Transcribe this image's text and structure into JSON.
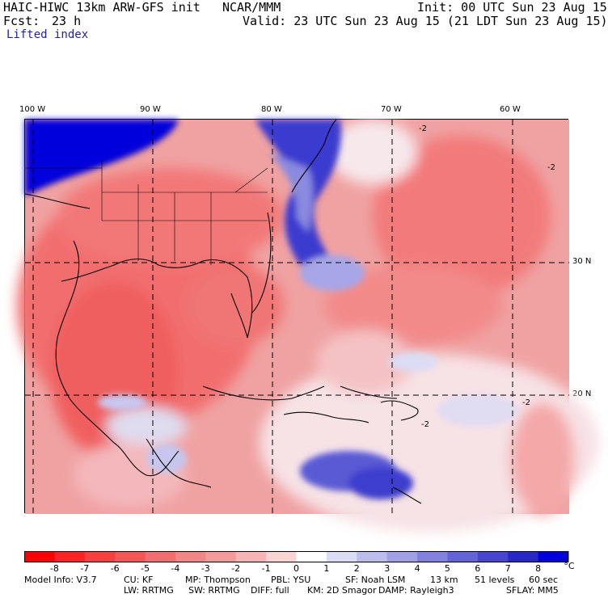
{
  "header": {
    "model": "HAIC-HIWC 13km ARW-GFS init",
    "org": "NCAR/MMM",
    "init": "Init: 00 UTC Sun 23 Aug 15",
    "fcst_label": "Fcst:",
    "fcst_value": "23 h",
    "valid": "Valid: 23 UTC Sun 23 Aug 15 (21 LDT Sun 23 Aug 15)",
    "field": "Lifted index"
  },
  "map": {
    "lon_labels": [
      "100 W",
      "90 W",
      "80 W",
      "70 W",
      "60 W"
    ],
    "lat_labels": [
      "30 N",
      "20 N"
    ],
    "contour_labels": [
      "-2",
      "-2",
      "-2",
      "-2"
    ]
  },
  "colorbar": {
    "unit": "°C",
    "labels": [
      "-8",
      "-7",
      "-6",
      "-5",
      "-4",
      "-3",
      "-2",
      "-1",
      "0",
      "1",
      "2",
      "3",
      "4",
      "5",
      "6",
      "7",
      "8"
    ],
    "colors": [
      "#ff0000",
      "#fb2323",
      "#f73f3f",
      "#f45656",
      "#f26d6d",
      "#f28585",
      "#f39b9b",
      "#f6b4b4",
      "#fad3d3",
      "#ffffff",
      "#dcdcf5",
      "#bcbced",
      "#a0a0e6",
      "#8282de",
      "#6464d8",
      "#4646d0",
      "#2828c8",
      "#0000dc"
    ]
  },
  "model_info": {
    "line1": [
      "Model Info: V3.7",
      "CU: KF",
      "MP: Thompson",
      "PBL: YSU",
      "SF: Noah LSM",
      "13 km",
      "51 levels",
      "60 sec"
    ],
    "line2": [
      "LW: RRTMG",
      "SW: RRTMG",
      "DIFF: full",
      "KM: 2D Smagor",
      "DAMP: Rayleigh3",
      "SFLAY: MM5"
    ]
  }
}
